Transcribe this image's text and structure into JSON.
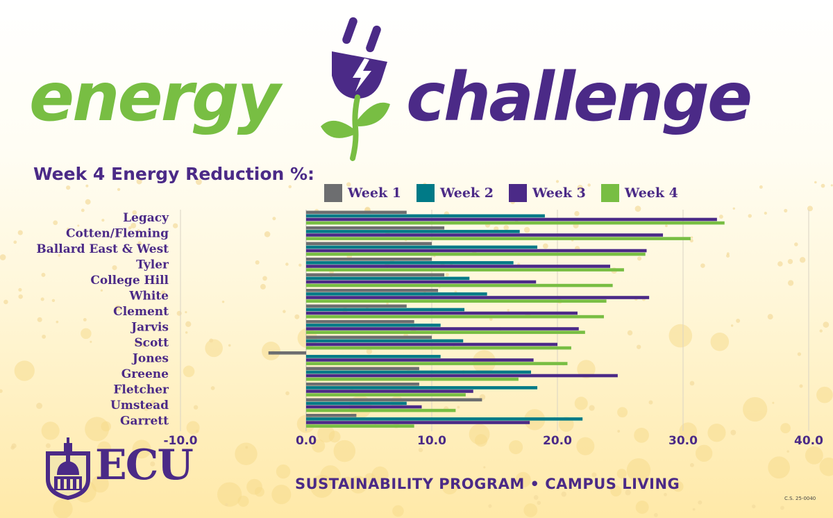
{
  "header": {
    "title_left": "energy",
    "title_right": "challenge",
    "subtitle": "Week 4 Energy Reduction %:"
  },
  "colors": {
    "green": "#78be43",
    "purple": "#4b2a87",
    "teal": "#007a87",
    "gray": "#6d6e70"
  },
  "icons": [
    "plug-icon",
    "leaf-icon",
    "ecu-crest-icon"
  ],
  "footer": {
    "logo_text": "ECU",
    "program": "SUSTAINABILITY PROGRAM • CAMPUS LIVING",
    "code": "C.S. 25-0040"
  },
  "chart_data": {
    "type": "bar",
    "orientation": "horizontal",
    "title": "Week 4 Energy Reduction %:",
    "categories": [
      "Legacy",
      "Cotten/Fleming",
      "Ballard East & West",
      "Tyler",
      "College Hill",
      "White",
      "Clement",
      "Jarvis",
      "Scott",
      "Jones",
      "Greene",
      "Fletcher",
      "Umstead",
      "Garrett"
    ],
    "series": [
      {
        "name": "Week 1",
        "color": "#6d6e70",
        "values": [
          8.0,
          11.0,
          10.0,
          10.0,
          11.0,
          10.5,
          8.0,
          8.6,
          10.0,
          -3.0,
          9.0,
          9.0,
          14.0,
          4.0
        ]
      },
      {
        "name": "Week 2",
        "color": "#007a87",
        "values": [
          19.0,
          17.0,
          18.4,
          16.5,
          13.0,
          14.4,
          12.6,
          10.7,
          12.5,
          10.7,
          17.9,
          18.4,
          8.0,
          22.0
        ]
      },
      {
        "name": "Week 3",
        "color": "#4b2a87",
        "values": [
          32.7,
          28.4,
          27.1,
          24.2,
          18.3,
          27.3,
          21.6,
          21.7,
          20.0,
          18.1,
          24.8,
          13.3,
          9.2,
          17.8
        ]
      },
      {
        "name": "Week 4",
        "color": "#78be43",
        "values": [
          33.3,
          30.6,
          27.0,
          25.3,
          24.4,
          23.9,
          23.7,
          22.2,
          21.1,
          20.8,
          16.9,
          12.7,
          11.9,
          8.6
        ]
      }
    ],
    "xlim": [
      -10,
      40
    ],
    "xticks": [
      "-10.0",
      "0.0",
      "10.0",
      "20.0",
      "30.0",
      "40.0"
    ],
    "legend": "top",
    "grid": "vertical"
  }
}
